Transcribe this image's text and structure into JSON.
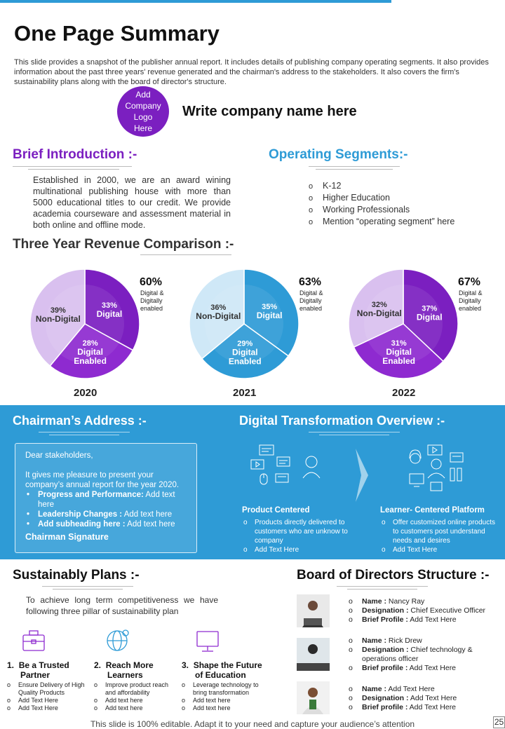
{
  "title": "One Page Summary",
  "intro": "This slide provides a snapshot of the publisher annual report. It includes details of publishing company operating segments. It also provides information about the past three years' revenue generated and the chairman's address to the stakeholders. It also covers the firm's sustainability plans along with the board of director's structure.",
  "logo": {
    "line1": "Add",
    "line2": "Company",
    "line3": "Logo",
    "line4": "Here"
  },
  "company_name": "Write company name here",
  "brief": {
    "heading": "Brief Introduction :-",
    "text": "Established in 2000, we are an award wining multinational publishing house with more than 5000 educational titles to our credit. We provide academia courseware and assessment material in both online and offline mode."
  },
  "operating": {
    "heading": "Operating Segments:-",
    "items": [
      "K-12",
      "Higher Education",
      "Working Professionals",
      "Mention “operating segment” here"
    ]
  },
  "revenue": {
    "heading": "Three Year Revenue Comparison :-"
  },
  "chart_data": [
    {
      "type": "pie",
      "year": "2020",
      "slices": [
        {
          "pct": "33%",
          "label": "Digital",
          "value": 33,
          "color": "#7b1fc0"
        },
        {
          "pct": "28%",
          "label": "Digital Enabled",
          "value": 28,
          "color": "#8e2ad0"
        },
        {
          "pct": "39%",
          "label": "Non-Digital",
          "value": 39,
          "color": "#d9c0ef"
        }
      ],
      "callout_pct": "60%",
      "callout_label": [
        "Digital &",
        "Digitally",
        "enabled"
      ]
    },
    {
      "type": "pie",
      "year": "2021",
      "slices": [
        {
          "pct": "35%",
          "label": "Digital",
          "value": 35,
          "color": "#2e9bd6"
        },
        {
          "pct": "29%",
          "label": "Digital Enabled",
          "value": 29,
          "color": "#2e9bd6"
        },
        {
          "pct": "36%",
          "label": "Non-Digital",
          "value": 36,
          "color": "#cfe8f7"
        }
      ],
      "callout_pct": "63%",
      "callout_label": [
        "Digital &",
        "Digitally",
        "enabled"
      ]
    },
    {
      "type": "pie",
      "year": "2022",
      "slices": [
        {
          "pct": "37%",
          "label": "Digital",
          "value": 37,
          "color": "#7b1fc0"
        },
        {
          "pct": "31%",
          "label": "Digital Enabled",
          "value": 31,
          "color": "#8e2ad0"
        },
        {
          "pct": "32%",
          "label": "Non-Digital",
          "value": 32,
          "color": "#d9c0ef"
        }
      ],
      "callout_pct": "67%",
      "callout_label": [
        "Digital &",
        "Digitally",
        "enabled"
      ]
    }
  ],
  "chairman": {
    "heading": "Chairman’s Address :-",
    "greeting": "Dear stakeholders,",
    "body": "It gives me pleasure to present your company’s annual report for the year 2020.",
    "items": [
      {
        "bold": "Progress and Performance:",
        "text": " Add text here"
      },
      {
        "bold": "Leadership Changes :",
        "text": " Add text here"
      },
      {
        "bold": "Add subheading here :",
        "text": " Add text here"
      }
    ],
    "signature": "Chairman Signature"
  },
  "digital": {
    "heading": "Digital Transformation Overview :-",
    "left_title": "Product Centered",
    "left_items": [
      "Products directly delivered to customers who are unknow to company",
      "Add Text Here"
    ],
    "right_title": "Learner- Centered Platform",
    "right_items": [
      "Offer customized online products to customers post understand needs and desires",
      "Add Text Here"
    ]
  },
  "sustain": {
    "heading": "Sustainably Plans :-",
    "text": "To achieve long term competitiveness we have following three pillar of sustainability plan",
    "pillars": [
      {
        "num": "1.",
        "title1": "Be a Trusted",
        "title2": "Partner",
        "icon": "briefcase-icon",
        "items": [
          "Ensure Delivery of High Quality Products",
          "Add Text Here",
          "Add Text Here"
        ]
      },
      {
        "num": "2.",
        "title1": "Reach More",
        "title2": "Learners",
        "icon": "globe-icon",
        "items": [
          "Improve product reach and affordability",
          "Add text here",
          "Add text here"
        ]
      },
      {
        "num": "3.",
        "title1": "Shape the Future",
        "title2": "of Education",
        "icon": "monitor-icon",
        "items": [
          "Leverage technology to bring transformation",
          "Add text here",
          "Add text here"
        ]
      }
    ]
  },
  "board": {
    "heading": "Board of Directors Structure :-",
    "members": [
      {
        "name_label": "Name :",
        "name": " Nancy Ray",
        "desig_label": "Designation :",
        "desig": " Chief Executive Officer",
        "profile_label": "Brief Profile :",
        "profile": " Add Text Here"
      },
      {
        "name_label": "Name :",
        "name": " Rick Drew",
        "desig_label": "Designation :",
        "desig": " Chief technology & operations officer",
        "profile_label": "Brief profile :",
        "profile": " Add Text Here"
      },
      {
        "name_label": "Name :",
        "name": " Add Text Here",
        "desig_label": "Designation :",
        "desig": " Add Text Here",
        "profile_label": "Brief profile :",
        "profile": " Add Text Here"
      }
    ]
  },
  "footer": "This slide is 100% editable. Adapt it to your need and capture your audience’s attention",
  "page_number": "25"
}
